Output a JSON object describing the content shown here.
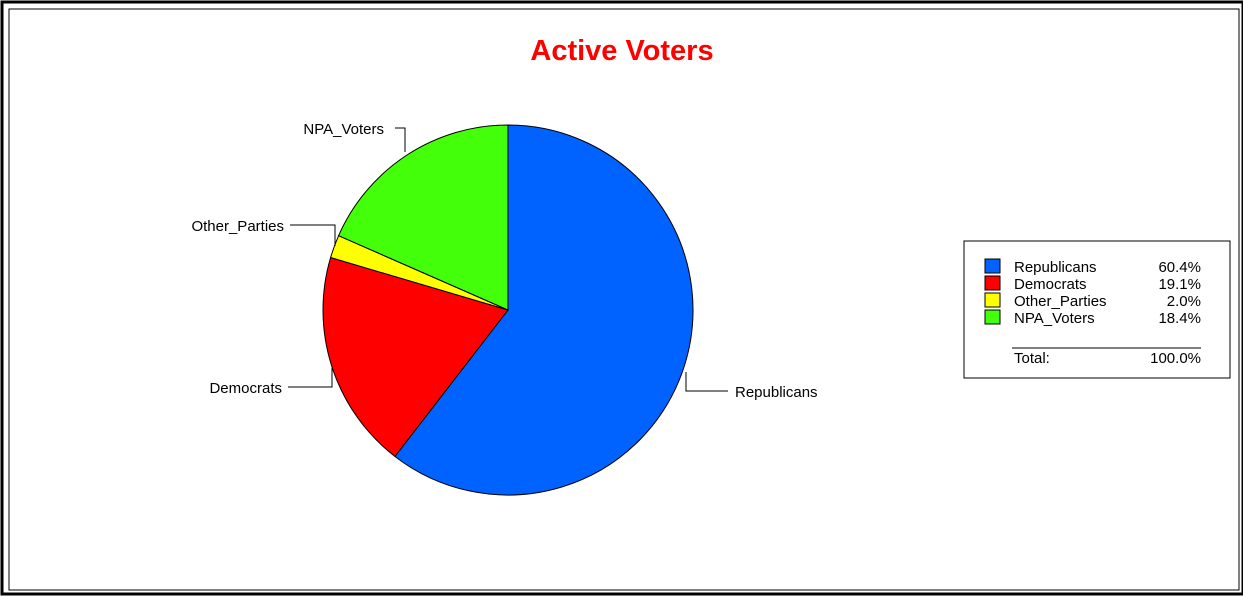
{
  "chart_data": {
    "type": "pie",
    "title": "Active Voters",
    "title_color": "#ff0000",
    "slices": [
      {
        "name": "Republicans",
        "value": 60.4,
        "label": "60.4%",
        "color": "#0062ff"
      },
      {
        "name": "Democrats",
        "value": 19.1,
        "label": "19.1%",
        "color": "#ff0000"
      },
      {
        "name": "Other_Parties",
        "value": 2.0,
        "label": "2.0%",
        "color": "#ffff00"
      },
      {
        "name": "NPA_Voters",
        "value": 18.4,
        "label": "18.4%",
        "color": "#44ff0a"
      }
    ],
    "start_angle_deg": 0,
    "direction": "clockwise",
    "legend": {
      "placement": "right",
      "total_label": "Total:",
      "total_value": "100.0%"
    }
  }
}
